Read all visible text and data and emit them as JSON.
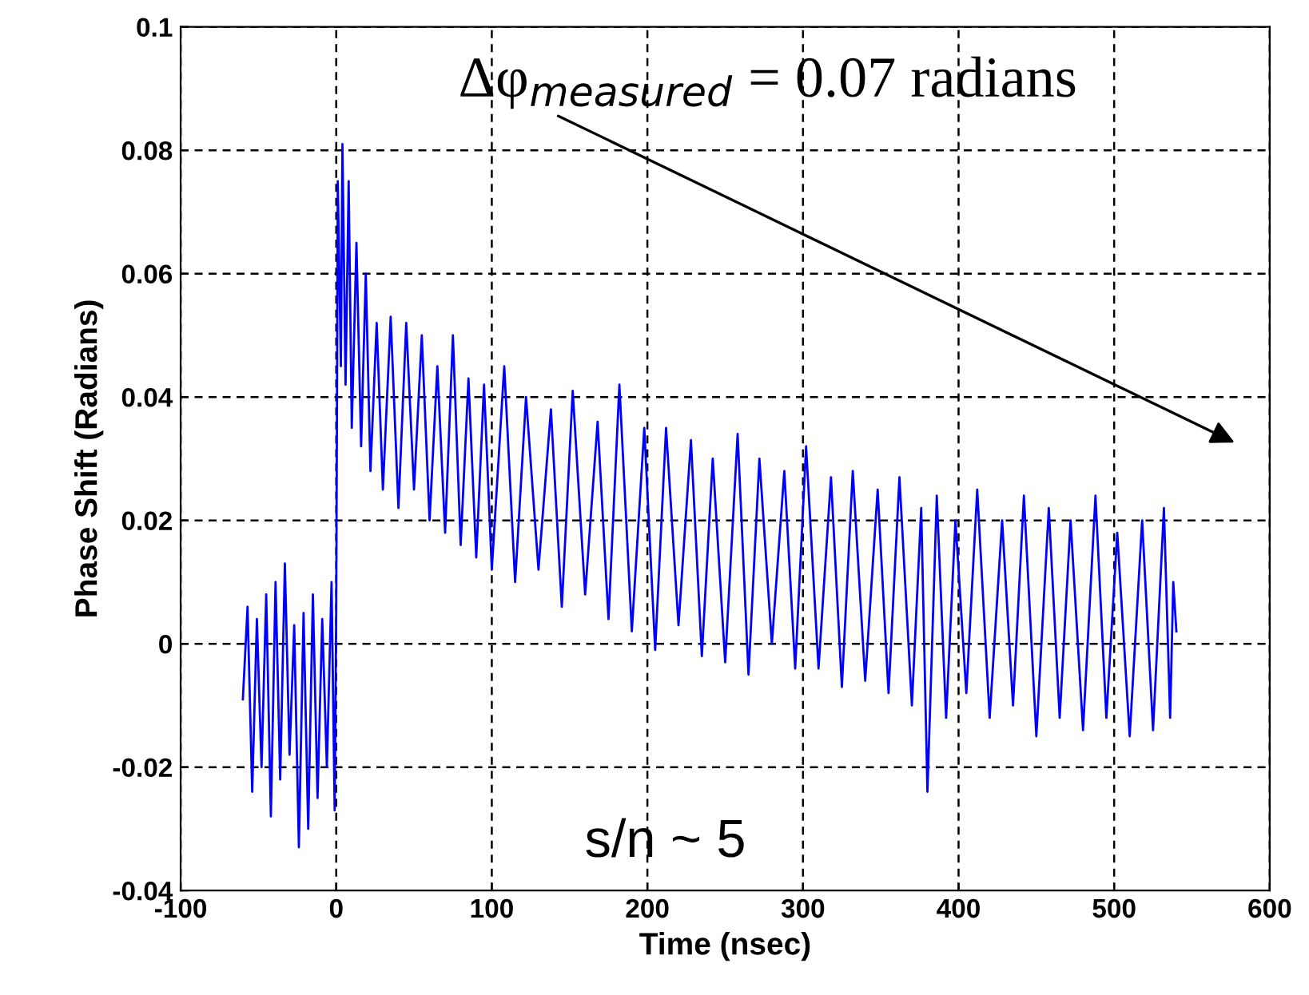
{
  "chart_data": {
    "type": "line",
    "xlabel": "Time (nsec)",
    "ylabel": "Phase Shift (Radians)",
    "annotations": [
      "Δφ$_{measured}$ = 0.07 radians",
      "s/n ~ 5"
    ],
    "xlim": [
      -100,
      600
    ],
    "xticks": [
      -100,
      0,
      100,
      200,
      300,
      400,
      500,
      600
    ],
    "ylim": [
      -0.04,
      0.1
    ],
    "yticks": [
      -0.04,
      -0.02,
      0,
      0.02,
      0.04,
      0.06,
      0.08,
      0.1
    ],
    "grid": true,
    "line_style": "solid",
    "series": [
      {
        "color": "#0000ff",
        "x": [
          -60,
          -57,
          -54,
          -51,
          -48,
          -45,
          -42,
          -39,
          -36,
          -33,
          -30,
          -27,
          -24,
          -21,
          -18,
          -15,
          -12,
          -9,
          -6,
          -3,
          -1,
          0,
          1,
          3,
          4,
          6,
          8,
          10,
          13,
          16,
          19,
          22,
          26,
          30,
          35,
          40,
          45,
          50,
          55,
          60,
          65,
          70,
          75,
          80,
          85,
          90,
          95,
          100,
          108,
          115,
          122,
          130,
          138,
          145,
          152,
          160,
          168,
          175,
          182,
          190,
          198,
          205,
          212,
          220,
          228,
          235,
          242,
          250,
          258,
          265,
          272,
          280,
          288,
          295,
          302,
          310,
          318,
          325,
          332,
          340,
          348,
          355,
          362,
          370,
          376,
          380,
          386,
          392,
          398,
          405,
          412,
          420,
          428,
          435,
          442,
          450,
          458,
          465,
          472,
          480,
          488,
          495,
          502,
          510,
          518,
          525,
          532,
          536,
          538,
          540
        ],
        "values": [
          -0.009,
          0.006,
          -0.024,
          0.004,
          -0.02,
          0.008,
          -0.028,
          0.01,
          -0.022,
          0.013,
          -0.018,
          0.003,
          -0.033,
          0.005,
          -0.03,
          0.008,
          -0.025,
          0.004,
          -0.02,
          0.01,
          -0.027,
          0.005,
          0.075,
          0.045,
          0.081,
          0.042,
          0.075,
          0.035,
          0.065,
          0.032,
          0.06,
          0.028,
          0.052,
          0.025,
          0.053,
          0.022,
          0.052,
          0.025,
          0.05,
          0.02,
          0.045,
          0.018,
          0.05,
          0.016,
          0.043,
          0.014,
          0.042,
          0.012,
          0.045,
          0.01,
          0.04,
          0.012,
          0.038,
          0.006,
          0.041,
          0.008,
          0.036,
          0.004,
          0.042,
          0.002,
          0.035,
          -0.001,
          0.035,
          0.003,
          0.033,
          -0.002,
          0.03,
          -0.003,
          0.034,
          -0.005,
          0.03,
          0.0,
          0.028,
          -0.004,
          0.032,
          -0.004,
          0.027,
          -0.007,
          0.028,
          -0.006,
          0.025,
          -0.008,
          0.027,
          -0.01,
          0.022,
          -0.024,
          0.024,
          -0.012,
          0.02,
          -0.008,
          0.025,
          -0.012,
          0.02,
          -0.01,
          0.024,
          -0.015,
          0.022,
          -0.012,
          0.02,
          -0.014,
          0.024,
          -0.012,
          0.018,
          -0.015,
          0.02,
          -0.014,
          0.022,
          -0.012,
          0.01,
          0.002
        ]
      }
    ]
  }
}
